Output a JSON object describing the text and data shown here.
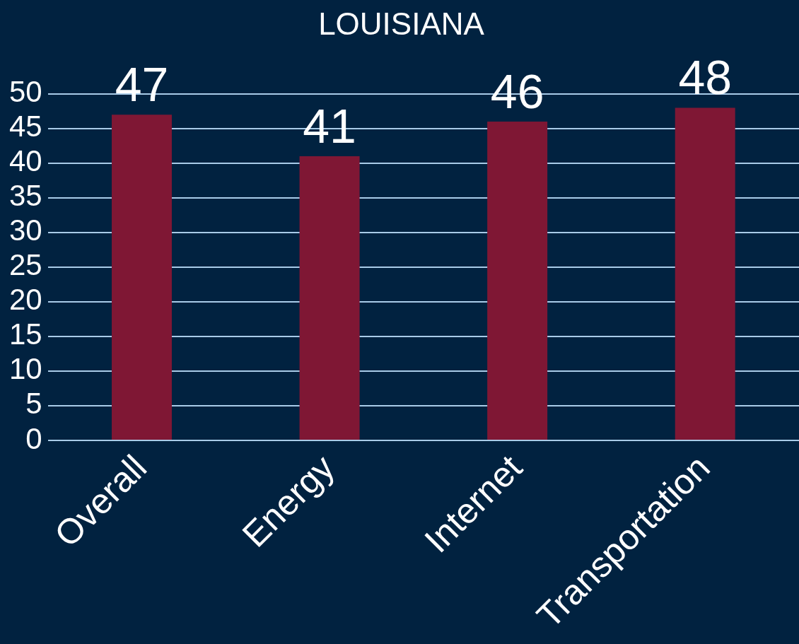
{
  "chart_data": {
    "type": "bar",
    "title": "LOUISIANA",
    "categories": [
      "Overall",
      "Energy",
      "Internet",
      "Transportation"
    ],
    "values": [
      47,
      41,
      46,
      48
    ],
    "color": "#7f1734",
    "ylim": [
      0,
      50
    ],
    "yticks": [
      0,
      5,
      10,
      15,
      20,
      25,
      30,
      35,
      40,
      45,
      50
    ],
    "grid": "y",
    "data_labels": true,
    "legend": false
  }
}
